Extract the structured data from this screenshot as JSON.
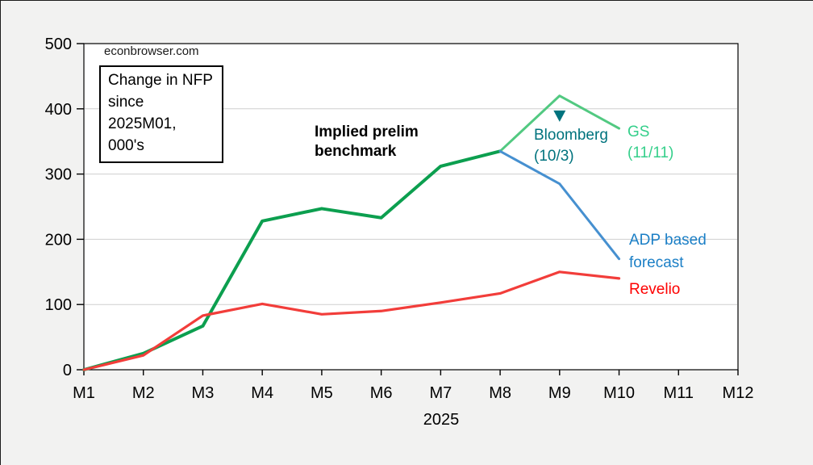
{
  "watermark": "econbrowser.com",
  "chart_data": {
    "type": "line",
    "title": "",
    "xlabel": "2025",
    "ylabel": "",
    "x_categories": [
      "M1",
      "M2",
      "M3",
      "M4",
      "M5",
      "M6",
      "M7",
      "M8",
      "M9",
      "M10",
      "M11",
      "M12"
    ],
    "ylim": [
      0,
      500
    ],
    "y_ticks": [
      0,
      100,
      200,
      300,
      400,
      500
    ],
    "grid": "horizontal",
    "legend_position": "inline-annotations",
    "colors": {
      "background": "#f2f2f1",
      "plot_background": "#ffffff",
      "gridline": "#cfcfcf",
      "axis": "#000000",
      "benchmark_green": "#0c9f4f",
      "gs_green": "#52c981",
      "adp_blue": "#4690d0",
      "revelio_red": "#f23d3a",
      "bloomberg_teal": "#00737e"
    },
    "series": [
      {
        "name": "Implied prelim benchmark",
        "color": "#0c9f4f",
        "width": 4,
        "start_month": 1,
        "values": [
          0,
          25,
          67,
          228,
          247,
          233,
          312,
          335
        ]
      },
      {
        "name": "GS (11/11)",
        "color": "#52c981",
        "width": 3,
        "start_month": 8,
        "values": [
          335,
          420,
          370
        ]
      },
      {
        "name": "ADP based forecast",
        "color": "#4690d0",
        "width": 3,
        "start_month": 8,
        "values": [
          335,
          285,
          170
        ]
      },
      {
        "name": "Revelio",
        "color": "#f23d3a",
        "width": 3.2,
        "start_month": 1,
        "values": [
          0,
          22,
          83,
          101,
          85,
          90,
          103,
          117,
          150,
          140
        ]
      }
    ],
    "point_markers": [
      {
        "label": "Bloomberg (10/3)",
        "month": 9,
        "value": 390,
        "shape": "triangle-down",
        "color": "#00737e"
      }
    ],
    "note_box": {
      "lines": [
        "Change in NFP",
        "since 2025M01,",
        "000's"
      ]
    },
    "labels": {
      "benchmark": {
        "lines": [
          "Implied prelim",
          "benchmark"
        ]
      },
      "gs": {
        "lines": [
          "GS",
          "(11/11)"
        ]
      },
      "bloomberg": {
        "lines": [
          "Bloomberg",
          "(10/3)"
        ]
      },
      "adp": {
        "lines": [
          "ADP based",
          "forecast"
        ]
      },
      "revelio": {
        "lines": [
          "Revelio"
        ]
      }
    }
  }
}
